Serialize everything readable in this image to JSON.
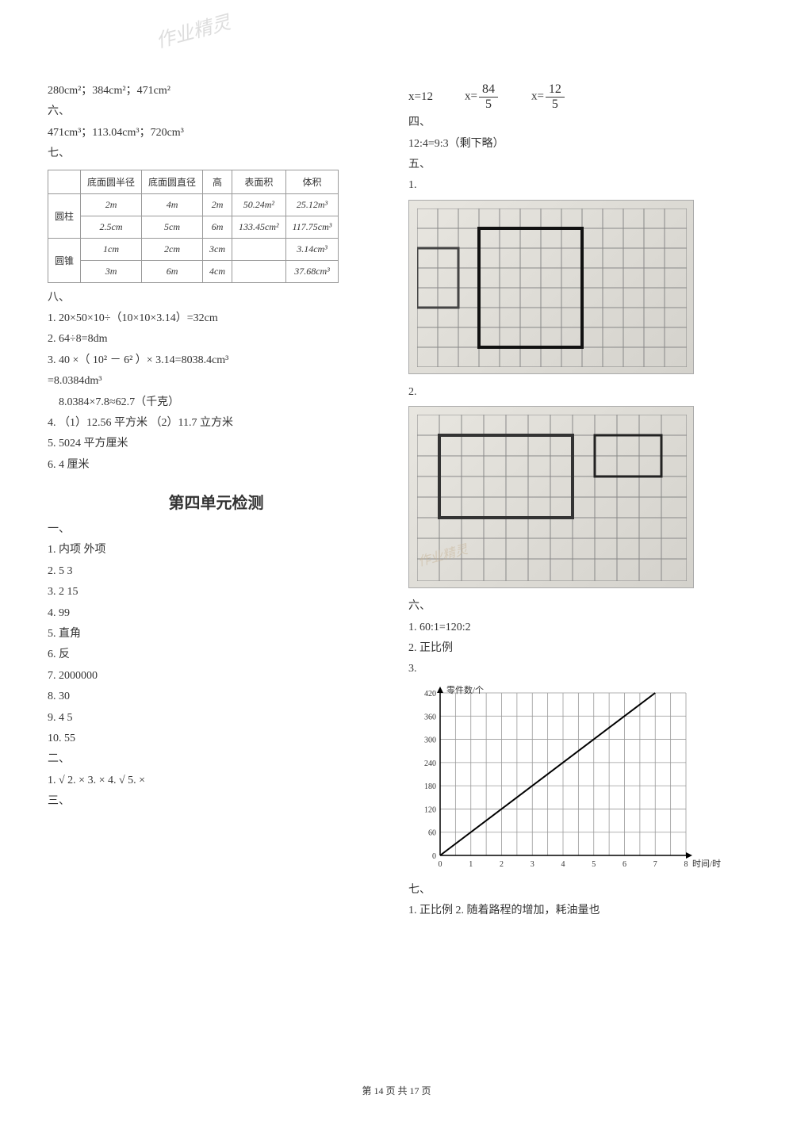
{
  "watermark": "作业精灵",
  "left": {
    "l1": "280cm²；384cm²；471cm²",
    "six": "六、",
    "l2": "471cm³；113.04cm³；720cm³",
    "seven": "七、",
    "table": {
      "headers": [
        "",
        "底面圆半径",
        "底面圆直径",
        "高",
        "表面积",
        "体积"
      ],
      "rowlabel1": "圆柱",
      "rowlabel2": "圆锥",
      "rows": [
        [
          "2m",
          "4m",
          "2m",
          "50.24m²",
          "25.12m³"
        ],
        [
          "2.5cm",
          "5cm",
          "6m",
          "133.45cm²",
          "117.75cm³"
        ],
        [
          "1cm",
          "2cm",
          "3cm",
          "",
          "3.14cm³"
        ],
        [
          "3m",
          "6m",
          "4cm",
          "",
          "37.68cm³"
        ]
      ]
    },
    "eight": "八、",
    "e1": "1.  20×50×10÷（10×10×3.14）=32cm",
    "e2": "2.  64÷8=8dm",
    "e3": "3.  40 ×（ 10² － 6² ）× 3.14=8038.4cm³",
    "e3b": "=8.0384dm³",
    "e3c": "    8.0384×7.8≈62.7（千克）",
    "e4": "4.  （1）12.56 平方米    （2）11.7 立方米",
    "e5": "5.  5024 平方厘米",
    "e6": "6.  4 厘米",
    "title": "第四单元检测",
    "one": "一、",
    "a1": "1.  内项     外项",
    "a2": "2.  5     3",
    "a3": "3.  2     15",
    "a4": "4.  99",
    "a5": "5.  直角",
    "a6": "6.  反",
    "a7": "7.  2000000",
    "a8": "8.  30",
    "a9": "9.  4     5",
    "a10": "10.  55",
    "two": "二、",
    "b1": "1.  √   2.  ×   3.  ×   4.  √   5.  ×",
    "three": "三、"
  },
  "right": {
    "eq1_lhs": "x=12",
    "eq2_lhs": "x=",
    "eq2_num": "84",
    "eq2_den": "5",
    "eq3_lhs": "x=",
    "eq3_num": "12",
    "eq3_den": "5",
    "four": "四、",
    "f1": "12:4=9:3（剩下略）",
    "five": "五、",
    "g1": "1.",
    "g2": "2.",
    "six": "六、",
    "h1": "1.   60:1=120:2",
    "h2": "2.  正比例",
    "h3": "3.",
    "chart": {
      "ylabel": "零件数/个",
      "xlabel": "时间/时",
      "yticks": [
        "0",
        "60",
        "120",
        "180",
        "240",
        "300",
        "360",
        "420"
      ],
      "xticks": [
        "0",
        "1",
        "2",
        "3",
        "4",
        "5",
        "6",
        "7",
        "8"
      ],
      "ymax": 420,
      "xmax": 8,
      "line_start": [
        0,
        0
      ],
      "line_end": [
        7,
        420
      ],
      "grid_color": "#999",
      "line_color": "#000"
    },
    "seven": "七、",
    "j1": "1.  正比例    2.  随着路程的增加，耗油量也"
  },
  "footer": "第 14 页 共 17 页"
}
